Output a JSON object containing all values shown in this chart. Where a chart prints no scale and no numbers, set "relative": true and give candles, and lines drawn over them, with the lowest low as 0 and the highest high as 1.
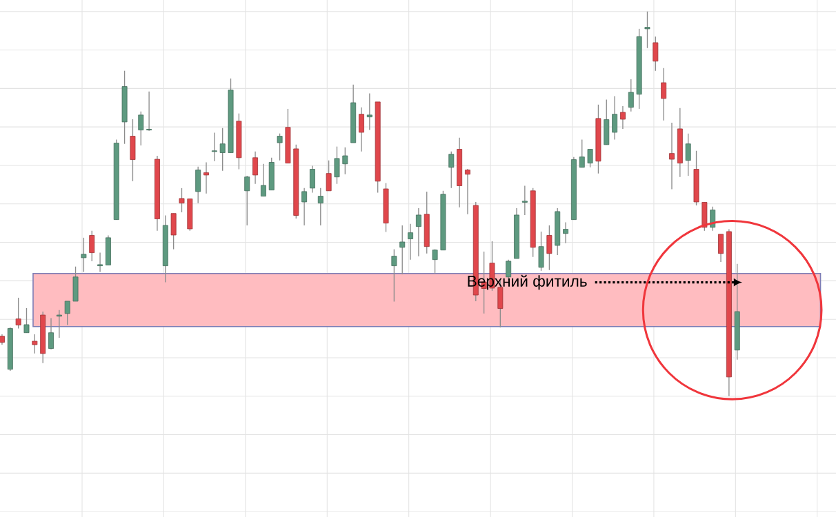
{
  "chart_data": {
    "type": "candlestick",
    "relative": true,
    "grid": true,
    "categories": [
      null,
      null,
      null,
      null,
      null,
      null,
      null,
      null,
      null,
      null,
      null,
      null,
      null,
      null,
      null,
      null,
      null,
      null,
      null,
      null,
      null,
      null,
      null,
      null,
      null,
      null,
      null,
      null,
      null,
      null,
      null,
      null,
      null,
      null,
      null,
      null,
      null,
      null,
      null,
      null,
      null,
      null,
      null,
      null,
      null,
      null,
      null,
      null,
      null,
      null,
      null,
      null,
      null,
      null,
      null,
      null,
      null,
      null,
      null,
      null,
      null,
      null,
      null,
      null,
      null,
      null,
      null,
      null,
      null,
      null,
      null,
      null,
      null,
      null,
      null,
      null,
      null,
      null,
      null,
      null,
      null,
      null,
      null,
      null,
      null,
      null,
      null,
      null,
      null,
      null,
      null
    ],
    "ohlc": [
      [
        0.156,
        0.161,
        0.134,
        0.14
      ],
      [
        0.07,
        0.179,
        0.066,
        0.176
      ],
      [
        0.201,
        0.256,
        0.176,
        0.185
      ],
      [
        0.165,
        0.229,
        0.165,
        0.186
      ],
      [
        0.143,
        0.161,
        0.111,
        0.134
      ],
      [
        0.211,
        0.22,
        0.086,
        0.111
      ],
      [
        0.124,
        0.203,
        0.122,
        0.165
      ],
      [
        0.208,
        0.224,
        0.152,
        0.211
      ],
      [
        0.215,
        0.247,
        0.185,
        0.247
      ],
      [
        0.247,
        0.337,
        0.247,
        0.31
      ],
      [
        0.36,
        0.412,
        0.323,
        0.369
      ],
      [
        0.418,
        0.43,
        0.351,
        0.373
      ],
      [
        0.339,
        0.373,
        0.323,
        0.342
      ],
      [
        0.341,
        0.418,
        0.341,
        0.412
      ],
      [
        0.459,
        0.667,
        0.459,
        0.658
      ],
      [
        0.713,
        0.846,
        0.656,
        0.805
      ],
      [
        0.676,
        0.72,
        0.559,
        0.615
      ],
      [
        0.692,
        0.74,
        0.652,
        0.731
      ],
      [
        0.692,
        0.792,
        0.69,
        0.694
      ],
      [
        0.616,
        0.625,
        0.43,
        0.461
      ],
      [
        0.339,
        0.47,
        0.296,
        0.444
      ],
      [
        0.475,
        0.475,
        0.382,
        0.419
      ],
      [
        0.514,
        0.541,
        0.478,
        0.502
      ],
      [
        0.513,
        0.513,
        0.43,
        0.435
      ],
      [
        0.532,
        0.597,
        0.502,
        0.588
      ],
      [
        0.581,
        0.608,
        0.527,
        0.575
      ],
      [
        0.636,
        0.685,
        0.611,
        0.638
      ],
      [
        0.633,
        0.697,
        0.586,
        0.656
      ],
      [
        0.633,
        0.826,
        0.633,
        0.796
      ],
      [
        0.715,
        0.735,
        0.59,
        0.62
      ],
      [
        0.534,
        0.573,
        0.444,
        0.57
      ],
      [
        0.62,
        0.636,
        0.552,
        0.575
      ],
      [
        0.52,
        0.604,
        0.52,
        0.548
      ],
      [
        0.536,
        0.62,
        0.536,
        0.608
      ],
      [
        0.659,
        0.683,
        0.613,
        0.676
      ],
      [
        0.699,
        0.747,
        0.606,
        0.606
      ],
      [
        0.643,
        0.654,
        0.462,
        0.47
      ],
      [
        0.505,
        0.541,
        0.444,
        0.532
      ],
      [
        0.541,
        0.599,
        0.529,
        0.59
      ],
      [
        0.502,
        0.541,
        0.444,
        0.52
      ],
      [
        0.579,
        0.613,
        0.534,
        0.534
      ],
      [
        0.57,
        0.649,
        0.552,
        0.618
      ],
      [
        0.604,
        0.647,
        0.577,
        0.625
      ],
      [
        0.659,
        0.81,
        0.659,
        0.763
      ],
      [
        0.733,
        0.751,
        0.636,
        0.686
      ],
      [
        0.726,
        0.787,
        0.692,
        0.731
      ],
      [
        0.765,
        0.765,
        0.529,
        0.559
      ],
      [
        0.539,
        0.554,
        0.427,
        0.45
      ],
      [
        0.339,
        0.382,
        0.246,
        0.364
      ],
      [
        0.387,
        0.444,
        0.317,
        0.401
      ],
      [
        0.409,
        0.448,
        0.355,
        0.425
      ],
      [
        0.441,
        0.489,
        0.364,
        0.471
      ],
      [
        0.473,
        0.532,
        0.371,
        0.389
      ],
      [
        0.355,
        0.382,
        0.319,
        0.38
      ],
      [
        0.38,
        0.534,
        0.38,
        0.525
      ],
      [
        0.595,
        0.636,
        0.541,
        0.629
      ],
      [
        0.642,
        0.672,
        0.491,
        0.547
      ],
      [
        0.588,
        0.591,
        0.473,
        0.577
      ],
      [
        0.496,
        0.505,
        0.247,
        0.263
      ],
      [
        0.297,
        0.376,
        0.215,
        0.28
      ],
      [
        0.346,
        0.403,
        0.274,
        0.281
      ],
      [
        0.283,
        0.301,
        0.179,
        0.228
      ],
      [
        0.31,
        0.355,
        0.301,
        0.351
      ],
      [
        0.358,
        0.489,
        0.358,
        0.471
      ],
      [
        0.504,
        0.547,
        0.471,
        0.507
      ],
      [
        0.534,
        0.541,
        0.362,
        0.387
      ],
      [
        0.335,
        0.428,
        0.326,
        0.389
      ],
      [
        0.418,
        0.444,
        0.328,
        0.371
      ],
      [
        0.392,
        0.489,
        0.367,
        0.48
      ],
      [
        0.423,
        0.452,
        0.398,
        0.434
      ],
      [
        0.459,
        0.622,
        0.459,
        0.615
      ],
      [
        0.595,
        0.667,
        0.595,
        0.622
      ],
      [
        0.606,
        0.642,
        0.595,
        0.642
      ],
      [
        0.722,
        0.758,
        0.579,
        0.611
      ],
      [
        0.654,
        0.771,
        0.654,
        0.719
      ],
      [
        0.686,
        0.78,
        0.667,
        0.733
      ],
      [
        0.738,
        0.754,
        0.695,
        0.72
      ],
      [
        0.751,
        0.824,
        0.74,
        0.79
      ],
      [
        0.785,
        0.955,
        0.747,
        0.935
      ],
      [
        0.955,
        1,
        0.905,
        0.959
      ],
      [
        0.919,
        0.935,
        0.846,
        0.871
      ],
      [
        0.815,
        0.853,
        0.717,
        0.774
      ],
      [
        0.631,
        0.711,
        0.538,
        0.616
      ],
      [
        0.695,
        0.749,
        0.57,
        0.606
      ],
      [
        0.613,
        0.683,
        0.573,
        0.656
      ],
      [
        0.59,
        0.638,
        0.496,
        0.505
      ],
      [
        0.504,
        0.504,
        0.43,
        0.439
      ],
      [
        0.439,
        0.493,
        0.43,
        0.484
      ],
      [
        0.421,
        0.421,
        0.349,
        0.371
      ],
      [
        0.428,
        0.434,
        0,
        0.05
      ],
      [
        0.12,
        0.344,
        0.095,
        0.22
      ]
    ],
    "colors": [
      "#e0474c",
      "#5e9a80",
      "#e0474c",
      "#5e9a80",
      "#e0474c",
      "#e0474c",
      "#5e9a80",
      "#5e9a80",
      "#5e9a80",
      "#5e9a80",
      "#5e9a80",
      "#e0474c",
      "#5e9a80",
      "#5e9a80",
      "#5e9a80",
      "#5e9a80",
      "#e0474c",
      "#5e9a80",
      "#5e9a80",
      "#e0474c",
      "#5e9a80",
      "#e0474c",
      "#e0474c",
      "#e0474c",
      "#5e9a80",
      "#e0474c",
      "#5e9a80",
      "#5e9a80",
      "#5e9a80",
      "#e0474c",
      "#5e9a80",
      "#e0474c",
      "#5e9a80",
      "#5e9a80",
      "#5e9a80",
      "#e0474c",
      "#e0474c",
      "#5e9a80",
      "#5e9a80",
      "#5e9a80",
      "#e0474c",
      "#5e9a80",
      "#5e9a80",
      "#5e9a80",
      "#e0474c",
      "#5e9a80",
      "#e0474c",
      "#e0474c",
      "#5e9a80",
      "#5e9a80",
      "#5e9a80",
      "#5e9a80",
      "#e0474c",
      "#5e9a80",
      "#5e9a80",
      "#5e9a80",
      "#e0474c",
      "#e0474c",
      "#e0474c",
      "#e0474c",
      "#e0474c",
      "#e0474c",
      "#5e9a80",
      "#5e9a80",
      "#5e9a80",
      "#e0474c",
      "#5e9a80",
      "#e0474c",
      "#5e9a80",
      "#5e9a80",
      "#5e9a80",
      "#5e9a80",
      "#5e9a80",
      "#e0474c",
      "#5e9a80",
      "#5e9a80",
      "#e0474c",
      "#5e9a80",
      "#5e9a80",
      "#5e9a80",
      "#e0474c",
      "#e0474c",
      "#e0474c",
      "#e0474c",
      "#5e9a80",
      "#e0474c",
      "#e0474c",
      "#5e9a80",
      "#e0474c",
      "#e0474c",
      "#5e9a80"
    ],
    "bands": [
      {
        "axis": "y",
        "from": 0.181,
        "to": 0.319,
        "color": "#ffbcc0"
      }
    ],
    "annotations": [
      "Верхний фитиль"
    ]
  }
}
